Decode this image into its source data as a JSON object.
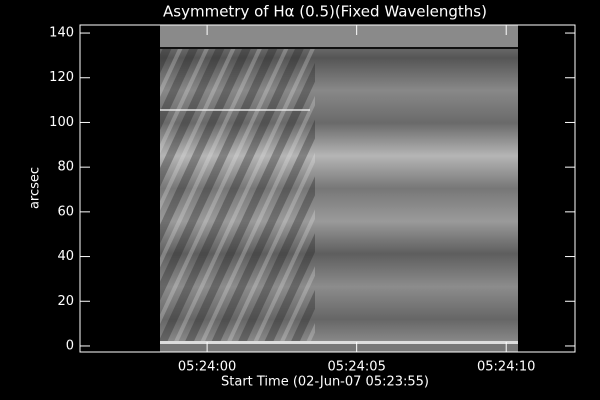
{
  "chart_data": {
    "type": "image",
    "title": "Asymmetry of Hα (0.5)(Fixed Wavelengths)",
    "x_label": "Start Time (02-Jun-07 05:23:55)",
    "y_label": "arcsec",
    "xlim": [
      0.75,
      17.3
    ],
    "xticks": [
      {
        "value": 5,
        "label": "05:24:00"
      },
      {
        "value": 10,
        "label": "05:24:05"
      },
      {
        "value": 15,
        "label": "05:24:10"
      }
    ],
    "ylim": [
      -2.7,
      143.6
    ],
    "yticks": [
      0,
      20,
      40,
      60,
      80,
      100,
      120,
      140
    ]
  }
}
